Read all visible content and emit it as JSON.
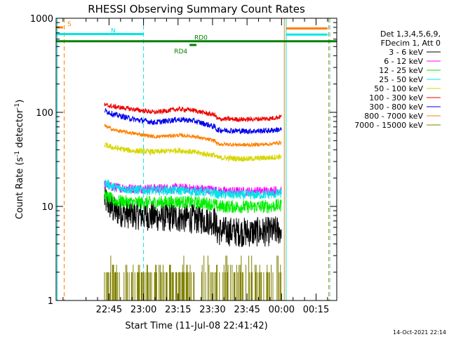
{
  "chart_data": {
    "type": "line",
    "title": "RHESSI Observing Summary Count Rates",
    "xlabel": "Start Time (11-Jul-08 22:41:42)",
    "ylabel": "Count Rate (s⁻¹ detector⁻¹)",
    "ylabel_parts": [
      "Count Rate (s",
      "-1",
      " detector",
      "-1",
      ")"
    ],
    "y_scale": "log",
    "ylim": [
      1,
      1000
    ],
    "xlim_minutes": [
      -23,
      99
    ],
    "ytick_labels": [
      "1",
      "10",
      "100",
      "1000"
    ],
    "ytick_values": [
      1,
      10,
      100,
      1000
    ],
    "xticks": [
      {
        "t": 0,
        "label": "22:45"
      },
      {
        "t": 15,
        "label": "23:00"
      },
      {
        "t": 30,
        "label": "23:15"
      },
      {
        "t": 45,
        "label": "23:30"
      },
      {
        "t": 60,
        "label": "23:45"
      },
      {
        "t": 75,
        "label": "00:00"
      },
      {
        "t": 90,
        "label": "00:15"
      }
    ],
    "legend_title": [
      "Det 1,3,4,5,6,9,",
      "FDecim 1, Att 0"
    ],
    "legend_position": "right",
    "timestamp": "14-Oct-2021 22:14",
    "series": [
      {
        "name": "3 - 6 keV",
        "color": "#000000",
        "points": [
          [
            -2,
            12
          ],
          [
            2,
            9
          ],
          [
            10,
            8.2
          ],
          [
            20,
            7.8
          ],
          [
            30,
            7.6
          ],
          [
            36,
            7.4
          ],
          [
            42,
            7.2
          ],
          [
            46,
            7.0
          ],
          [
            47,
            5.5
          ],
          [
            60,
            5.3
          ],
          [
            70,
            5.4
          ],
          [
            75,
            5.6
          ]
        ]
      },
      {
        "name": "6 - 12 keV",
        "color": "#ff00ff",
        "points": [
          [
            -2,
            17
          ],
          [
            2,
            16
          ],
          [
            10,
            15.5
          ],
          [
            20,
            15.5
          ],
          [
            30,
            15.7
          ],
          [
            36,
            15.4
          ],
          [
            42,
            15.2
          ],
          [
            46,
            15.0
          ],
          [
            47,
            14.5
          ],
          [
            60,
            14.4
          ],
          [
            70,
            14.6
          ],
          [
            75,
            15
          ]
        ]
      },
      {
        "name": "12 - 25 keV",
        "color": "#00ee00",
        "points": [
          [
            -2,
            13
          ],
          [
            2,
            11.5
          ],
          [
            10,
            11
          ],
          [
            20,
            11
          ],
          [
            30,
            11.2
          ],
          [
            36,
            11
          ],
          [
            42,
            10.8
          ],
          [
            46,
            10.5
          ],
          [
            47,
            10
          ],
          [
            60,
            9.9
          ],
          [
            70,
            10
          ],
          [
            75,
            10.3
          ]
        ]
      },
      {
        "name": "25 - 50 keV",
        "color": "#00e5e5",
        "points": [
          [
            -2,
            18
          ],
          [
            2,
            16
          ],
          [
            10,
            15
          ],
          [
            20,
            14.8
          ],
          [
            30,
            14.8
          ],
          [
            36,
            14.5
          ],
          [
            42,
            14.2
          ],
          [
            46,
            14
          ],
          [
            47,
            13.5
          ],
          [
            60,
            13.2
          ],
          [
            70,
            13.4
          ],
          [
            75,
            13.8
          ]
        ]
      },
      {
        "name": "50 - 100 keV",
        "color": "#d6d600",
        "points": [
          [
            -2,
            45
          ],
          [
            2,
            42
          ],
          [
            10,
            39
          ],
          [
            20,
            38
          ],
          [
            30,
            39.5
          ],
          [
            36,
            38
          ],
          [
            42,
            36
          ],
          [
            46,
            35
          ],
          [
            47,
            33
          ],
          [
            60,
            32
          ],
          [
            70,
            33
          ],
          [
            75,
            34
          ]
        ]
      },
      {
        "name": "100 - 300 keV",
        "color": "#ee0000",
        "points": [
          [
            -2,
            120
          ],
          [
            2,
            115
          ],
          [
            10,
            108
          ],
          [
            20,
            100
          ],
          [
            30,
            108
          ],
          [
            36,
            106
          ],
          [
            42,
            98
          ],
          [
            46,
            94
          ],
          [
            47,
            85
          ],
          [
            60,
            84
          ],
          [
            70,
            86
          ],
          [
            75,
            90
          ]
        ]
      },
      {
        "name": "300 - 800 keV",
        "color": "#0000ee",
        "points": [
          [
            -2,
            105
          ],
          [
            2,
            95
          ],
          [
            10,
            85
          ],
          [
            20,
            78
          ],
          [
            30,
            84
          ],
          [
            36,
            82
          ],
          [
            42,
            75
          ],
          [
            46,
            70
          ],
          [
            47,
            65
          ],
          [
            60,
            63
          ],
          [
            70,
            64
          ],
          [
            75,
            66
          ]
        ]
      },
      {
        "name": "800 - 7000 keV",
        "color": "#ff8000",
        "points": [
          [
            -2,
            72
          ],
          [
            2,
            65
          ],
          [
            10,
            60
          ],
          [
            20,
            55
          ],
          [
            30,
            57
          ],
          [
            36,
            56
          ],
          [
            42,
            52
          ],
          [
            46,
            50
          ],
          [
            47,
            46
          ],
          [
            60,
            45
          ],
          [
            70,
            46
          ],
          [
            75,
            48
          ]
        ]
      },
      {
        "name": "7000 - 15000 keV",
        "color": "#808000",
        "points": [
          [
            -2,
            1.6
          ],
          [
            10,
            1.5
          ],
          [
            20,
            1.7
          ],
          [
            30,
            1.6
          ],
          [
            40,
            1.5
          ],
          [
            50,
            1.4
          ],
          [
            60,
            1.5
          ],
          [
            70,
            1.5
          ],
          [
            75,
            1.5
          ]
        ]
      }
    ],
    "flag_lines": [
      {
        "label": "S",
        "color": "#ff8000",
        "y": 800,
        "x": [
          -23,
          -20
        ]
      },
      {
        "label": "N",
        "color": "#00e5e5",
        "y": 680,
        "x": [
          -23,
          15
        ]
      },
      {
        "label": "RD0",
        "color": "#008000",
        "y": 570,
        "x": [
          -23,
          99
        ]
      },
      {
        "label": "RD4",
        "color": "#008000",
        "y": 520,
        "x": [
          35,
          38
        ]
      },
      {
        "label": "",
        "color": "#ff8000",
        "y": 780,
        "x": [
          77,
          95
        ]
      },
      {
        "label": "",
        "color": "#00e5e5",
        "y": 670,
        "x": [
          77,
          95
        ]
      }
    ],
    "vertical_markers": [
      {
        "t": -19.5,
        "color": "#ff8000",
        "style": "dashed"
      },
      {
        "t": -22.5,
        "color": "#00e5e5",
        "style": "solid"
      },
      {
        "t": 15,
        "color": "#00e5e5",
        "style": "dashed"
      },
      {
        "t": 76.2,
        "color": "#ff8000",
        "style": "solid"
      },
      {
        "t": 77,
        "color": "#00e5e5",
        "style": "solid"
      },
      {
        "t": 95.5,
        "color": "#ff8000",
        "style": "dashed"
      },
      {
        "t": 96,
        "color": "#00e5e5",
        "style": "dashed"
      }
    ]
  }
}
